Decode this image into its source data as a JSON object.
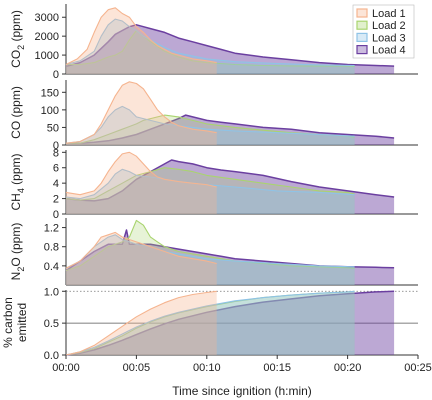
{
  "chart_data": {
    "type": "area",
    "xlabel": "Time since ignition (h:min)",
    "x_tick_labels": [
      "00:00",
      "00:05",
      "00:10",
      "00:15",
      "00:20",
      "00:25"
    ],
    "x_unit": "minutes",
    "xlim": [
      0,
      25
    ],
    "legend": {
      "placement": "top-right",
      "entries": [
        {
          "name": "Load 1",
          "color": "#f5b48f"
        },
        {
          "name": "Load 2",
          "color": "#a9d46f"
        },
        {
          "name": "Load 3",
          "color": "#8fc3e6"
        },
        {
          "name": "Load 4",
          "color": "#6b3fa0"
        }
      ]
    },
    "panels": [
      {
        "ylabel_parts": [
          {
            "t": "CO"
          },
          {
            "t": "2",
            "sub": true
          },
          {
            "t": " (ppm)"
          }
        ],
        "ylim": [
          0,
          3700
        ],
        "yticks": [
          0,
          1000,
          2000,
          3000
        ],
        "series": [
          {
            "name": "Load 1",
            "x": [
              0,
              0.8,
              1.5,
              2,
              2.5,
              3,
              3.5,
              4,
              4.5,
              5,
              5.5,
              6,
              6.5,
              7,
              7.5,
              8,
              9,
              10,
              10.7
            ],
            "y": [
              500,
              800,
              1300,
              2200,
              3000,
              3400,
              3500,
              3200,
              3000,
              2500,
              2200,
              1800,
              1500,
              1300,
              1100,
              1000,
              800,
              700,
              600
            ]
          },
          {
            "name": "Load 2",
            "x": [
              0,
              1,
              2,
              3,
              3.5,
              4,
              4.5,
              5,
              5.5,
              6,
              7,
              8,
              9,
              10,
              12,
              14,
              16,
              18,
              20,
              20.5
            ],
            "y": [
              500,
              500,
              600,
              900,
              1000,
              1200,
              1800,
              2300,
              2000,
              1700,
              1200,
              900,
              700,
              600,
              500,
              450,
              430,
              420,
              410,
              400
            ]
          },
          {
            "name": "Load 3",
            "x": [
              0,
              1,
              2,
              2.5,
              3,
              3.5,
              4,
              4.5,
              5,
              5.5,
              6,
              7,
              8,
              10,
              12,
              15,
              18,
              20.5
            ],
            "y": [
              500,
              700,
              1200,
              2000,
              2600,
              2900,
              2800,
              2500,
              2300,
              2000,
              1800,
              1400,
              1100,
              800,
              650,
              550,
              480,
              450
            ]
          },
          {
            "name": "Load 4",
            "x": [
              0,
              1,
              2,
              3,
              3.5,
              4,
              4.5,
              5,
              5.5,
              6,
              7,
              8,
              9,
              10,
              11,
              12,
              14,
              16,
              18,
              20,
              22,
              23.3
            ],
            "y": [
              400,
              600,
              1000,
              1700,
              2100,
              2300,
              2500,
              2600,
              2500,
              2400,
              2200,
              1900,
              1700,
              1500,
              1300,
              1100,
              900,
              750,
              600,
              500,
              450,
              420
            ]
          }
        ]
      },
      {
        "ylabel_parts": [
          {
            "t": "CO (ppm)"
          }
        ],
        "ylim": [
          0,
          185
        ],
        "yticks": [
          0,
          50,
          100,
          150
        ],
        "series": [
          {
            "name": "Load 1",
            "x": [
              0,
              1,
              2,
              2.5,
              3,
              3.5,
              4,
              4.5,
              5,
              5.5,
              6,
              6.5,
              7,
              7.5,
              8,
              9,
              10,
              10.7
            ],
            "y": [
              5,
              10,
              30,
              60,
              100,
              140,
              170,
              180,
              175,
              160,
              130,
              100,
              80,
              65,
              55,
              45,
              40,
              35
            ]
          },
          {
            "name": "Load 2",
            "x": [
              0,
              1,
              2,
              3,
              4,
              5,
              5.5,
              6,
              7,
              8,
              9,
              10,
              12,
              14,
              16,
              18,
              20,
              20.5
            ],
            "y": [
              5,
              5,
              15,
              30,
              45,
              60,
              70,
              75,
              85,
              80,
              70,
              60,
              50,
              42,
              35,
              30,
              25,
              22
            ]
          },
          {
            "name": "Load 3",
            "x": [
              0,
              1,
              2,
              2.5,
              3,
              3.5,
              4,
              4.5,
              5,
              6,
              7,
              8,
              10,
              12,
              15,
              18,
              20.5
            ],
            "y": [
              5,
              10,
              30,
              50,
              80,
              100,
              110,
              100,
              80,
              70,
              60,
              55,
              45,
              40,
              35,
              30,
              25
            ]
          },
          {
            "name": "Load 4",
            "x": [
              0,
              1,
              2,
              3,
              4,
              5,
              6,
              7,
              8,
              8.5,
              9,
              10,
              11,
              12,
              14,
              16,
              18,
              20,
              22,
              23.3
            ],
            "y": [
              5,
              5,
              8,
              12,
              20,
              30,
              45,
              60,
              75,
              85,
              80,
              70,
              65,
              60,
              50,
              45,
              35,
              30,
              25,
              20
            ]
          }
        ]
      },
      {
        "ylabel_parts": [
          {
            "t": "CH"
          },
          {
            "t": "4",
            "sub": true
          },
          {
            "t": " (ppm)"
          }
        ],
        "ylim": [
          0,
          8.3
        ],
        "yticks": [
          0,
          2,
          4,
          6,
          8
        ],
        "series": [
          {
            "name": "Load 1",
            "x": [
              0,
              1,
              2,
              2.5,
              3,
              3.5,
              4,
              4.5,
              5,
              5.5,
              6,
              6.5,
              7,
              8,
              9,
              10,
              10.7
            ],
            "y": [
              2.8,
              2.5,
              3,
              4,
              5.5,
              6.8,
              7.8,
              8,
              7.5,
              6.5,
              5.5,
              4.8,
              4.5,
              4.2,
              4,
              3.8,
              3.5
            ]
          },
          {
            "name": "Load 2",
            "x": [
              0,
              1,
              2,
              3,
              4,
              5,
              6,
              7,
              8,
              9,
              10,
              12,
              14,
              16,
              18,
              20,
              20.5
            ],
            "y": [
              2,
              1.8,
              2,
              3,
              4,
              5,
              5.5,
              6,
              5.8,
              5.5,
              5,
              4.5,
              4,
              3.5,
              3,
              2.8,
              2.6
            ]
          },
          {
            "name": "Load 3",
            "x": [
              0,
              1,
              2,
              3,
              3.5,
              4,
              4.5,
              5,
              6,
              7,
              8,
              10,
              12,
              15,
              18,
              20.5
            ],
            "y": [
              2.2,
              2,
              2.5,
              4,
              5.2,
              5.8,
              5.5,
              5,
              4.8,
              4.5,
              4.2,
              3.8,
              3.5,
              3,
              2.8,
              2.5
            ]
          },
          {
            "name": "Load 4",
            "x": [
              0,
              1,
              2,
              3,
              4,
              5,
              6,
              7,
              7.5,
              8,
              9,
              10,
              11,
              12,
              14,
              16,
              18,
              20,
              22,
              23.3
            ],
            "y": [
              2,
              1.8,
              1.7,
              2,
              3,
              4.5,
              5.5,
              6.5,
              7,
              6.8,
              6.5,
              6,
              5.7,
              5.5,
              5,
              4.2,
              3.5,
              3,
              2.5,
              2.2
            ]
          }
        ]
      },
      {
        "ylabel_parts": [
          {
            "t": "N"
          },
          {
            "t": "2",
            "sub": true
          },
          {
            "t": "O (ppm)"
          }
        ],
        "ylim": [
          0,
          1.4
        ],
        "yticks": [
          0.4,
          0.8,
          1.2
        ],
        "series": [
          {
            "name": "Load 1",
            "x": [
              0,
              1,
              2,
              2.5,
              3,
              3.5,
              4,
              4.5,
              5,
              6,
              7,
              8,
              9,
              10,
              10.7
            ],
            "y": [
              0.35,
              0.5,
              0.8,
              1.0,
              1.05,
              1.1,
              1.0,
              0.95,
              0.9,
              0.8,
              0.7,
              0.6,
              0.55,
              0.5,
              0.45
            ]
          },
          {
            "name": "Load 2",
            "x": [
              0,
              1,
              2,
              3,
              4,
              4.5,
              5,
              5.5,
              6,
              6.5,
              7,
              8,
              10,
              12,
              14,
              16,
              18,
              20,
              20.5
            ],
            "y": [
              0.3,
              0.4,
              0.6,
              0.8,
              0.9,
              1.0,
              1.35,
              1.25,
              1.0,
              0.9,
              0.8,
              0.7,
              0.6,
              0.5,
              0.45,
              0.4,
              0.38,
              0.36,
              0.35
            ]
          },
          {
            "name": "Load 3",
            "x": [
              0,
              1,
              2,
              3,
              3.5,
              4,
              5,
              6,
              7,
              8,
              10,
              12,
              15,
              18,
              20.5
            ],
            "y": [
              0.35,
              0.5,
              0.8,
              1.0,
              1.05,
              0.95,
              0.85,
              0.8,
              0.7,
              0.65,
              0.55,
              0.5,
              0.45,
              0.4,
              0.38
            ]
          },
          {
            "name": "Load 4",
            "x": [
              0,
              1,
              2,
              3,
              4,
              4.3,
              4.5,
              5,
              6,
              7,
              8,
              9,
              10,
              11,
              12,
              14,
              16,
              18,
              20,
              22,
              23.3
            ],
            "y": [
              0.3,
              0.5,
              0.7,
              0.85,
              0.85,
              1.15,
              0.85,
              0.85,
              0.85,
              0.8,
              0.75,
              0.7,
              0.65,
              0.6,
              0.55,
              0.5,
              0.45,
              0.4,
              0.38,
              0.37,
              0.36
            ]
          }
        ]
      },
      {
        "ylabel_parts": [
          {
            "t": "% carbon"
          },
          {
            "t": "emitted",
            "newline": true
          }
        ],
        "ylim": [
          0,
          1.02
        ],
        "yticks": [
          0,
          0.5,
          1.0
        ],
        "ytick_labels": [
          "0.0",
          "0.5",
          "1.0"
        ],
        "series": [
          {
            "name": "Load 1",
            "x": [
              0,
              1,
              2,
              3,
              4,
              5,
              6,
              7,
              8,
              9,
              10,
              10.7
            ],
            "y": [
              0,
              0.05,
              0.15,
              0.3,
              0.45,
              0.6,
              0.72,
              0.82,
              0.9,
              0.95,
              0.98,
              1.0
            ]
          },
          {
            "name": "Load 2",
            "x": [
              0,
              1,
              2,
              3,
              4,
              5,
              6,
              7,
              8,
              10,
              12,
              14,
              16,
              18,
              20,
              20.5
            ],
            "y": [
              0,
              0.04,
              0.1,
              0.2,
              0.3,
              0.42,
              0.52,
              0.6,
              0.66,
              0.76,
              0.84,
              0.9,
              0.94,
              0.97,
              0.99,
              1.0
            ]
          },
          {
            "name": "Load 3",
            "x": [
              0,
              1,
              2,
              3,
              4,
              5,
              6,
              7,
              8,
              10,
              12,
              14,
              16,
              18,
              20,
              20.5
            ],
            "y": [
              0,
              0.05,
              0.12,
              0.22,
              0.33,
              0.44,
              0.53,
              0.61,
              0.67,
              0.77,
              0.85,
              0.9,
              0.94,
              0.97,
              0.99,
              1.0
            ]
          },
          {
            "name": "Load 4",
            "x": [
              0,
              1,
              2,
              3,
              4,
              5,
              6,
              7,
              8,
              10,
              12,
              14,
              16,
              18,
              20,
              22,
              23.3
            ],
            "y": [
              0,
              0.03,
              0.08,
              0.15,
              0.23,
              0.32,
              0.41,
              0.49,
              0.56,
              0.67,
              0.76,
              0.83,
              0.88,
              0.93,
              0.96,
              0.99,
              1.0
            ]
          }
        ]
      }
    ]
  }
}
